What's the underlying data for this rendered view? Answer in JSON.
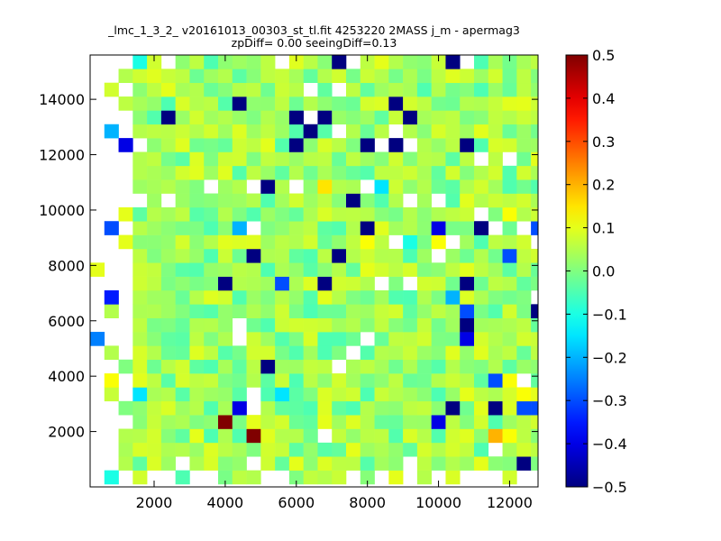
{
  "chart_data": {
    "type": "heatmap",
    "title": "_lmc_1_3_2_ v20161013_00303_st_tl.fit 4253220 2MASS j_m - apermag3",
    "subtitle": "zpDiff= 0.00 seeingDiff=0.13",
    "xlabel": "",
    "ylabel": "",
    "xlim": [
      200,
      12800
    ],
    "ylim": [
      0,
      15600
    ],
    "x_ticks": [
      2000,
      4000,
      6000,
      8000,
      10000,
      12000
    ],
    "y_ticks": [
      2000,
      4000,
      6000,
      8000,
      10000,
      12000,
      14000
    ],
    "x_tick_labels": [
      "2000",
      "4000",
      "6000",
      "8000",
      "10000",
      "12000"
    ],
    "y_tick_labels": [
      "2000",
      "4000",
      "6000",
      "8000",
      "10000",
      "12000",
      "14000"
    ],
    "colormap": "jet",
    "clim": [
      -0.5,
      0.5
    ],
    "colorbar_ticks": [
      0.5,
      0.4,
      0.3,
      0.2,
      0.1,
      0.0,
      -0.1,
      -0.2,
      -0.3,
      -0.4,
      -0.5
    ],
    "colorbar_tick_labels": [
      "0.5",
      "0.4",
      "0.3",
      "0.2",
      "0.1",
      "0.0",
      "−0.1",
      "−0.2",
      "−0.3",
      "−0.4",
      "−0.5"
    ],
    "grid": false,
    "bin_size": [
      400,
      500
    ],
    "x_bin_start": 200,
    "y_bin_start": 100,
    "rows_bottom_to_top": [
      "......,..,,,..,,,,.,,,.,.,........",
      "..,,,,.,,,..,,,,,,,,,,,,,,,,,,C,..",
      "..,,,,,,,,,,,,,,,,,,,,,,,,,,,,,,..",
      "...,,,,,,,,X,,,,,,,,,,,,,,,,,,,,..",
      "...,,,,,,,,,,,,,,,,,,,,,,,,,,,,,,.",
      "...,,,,,,,,,,,,,,,,,,,,,,,,,,,,,,.",
      "...,,,,,,,,,,,,,,,,,,,,,,,,,,,,,,.",
      "...,,,,,,,,,,,,,,,,,,,,,,,,,,,,,,.",
      "...,,,,,,,,,,,,,,,,,,,,,,,,,,,,,,.",
      "...,,,,,,,,,,,,,,,,,,,,,,,,,,,,,,.",
      "...,,,,,,,,,,,,,,,,,,,,,,,,,,,,,,.",
      "...,,,,,,,,,,,,,,,,,,,,,,,,,,,,,,.",
      "...,,,,,,,,,,,,,,,,,,,,,,,,,,,,,,.",
      "...,,,,,,,,,,,,,,,,,,,,,,,,,,,,,,.",
      "...,,,,,,,,,,,,,,,,,,,,,,,,,,,,,,.",
      "...,,,,,,,,,,,,,,,,,,,,,,,,,,,,,,.",
      "...,,,,,,,,,,,,,,,,,,,,,,,,,,,,,,.",
      "...,,,,,,,,,,,,,,,,,,,,,,,,,,,,,,.",
      "...,,,,,,,,,,,,,,,,,,,,,,,,,,,,,,.",
      "...,,,,,,,,,,,,,,,,,,,,,,,,,,,,,,.",
      "...,,,,,,,,,,,,,,,,,,,,,,,,,,,,,,.",
      "...,,,,,,,,,,,,,,,,,,,,,,,,,,,,,,.",
      "...,,,,,,,,,,,,,,,,,,,,,,,,,,,,,,.",
      "...,,,,,,,,,,,,,,,,,,,,,,,,,,,,,,.",
      "...,,,,,,,,,,,,,,,,,,,,,,,,,,,,,,.",
      "...,,,,,,,,,,,,,,,,,,,,,,,,,,,,,,.",
      "...,,,,,,,,,,,,,,,,,,,,,,,,,,,,,,.",
      "...,,,,,,,,,,,,,,,,,,,,,,,,,,,,,,.",
      "...,,,,,,,,,,,,,,,,,,,,,,,,,,,,,,.",
      "...,,,,,,,,,,,,,,,,,,,,,,,,,,,,,,.",
      "...,,,,,,,,,,,,,,,,,,,,,,,,,,,,,,."
    ],
    "cells": [
      [
        1,
        0,
        -0.1
      ],
      [
        3,
        0,
        0.08
      ],
      [
        11,
        0,
        0.05
      ],
      [
        21,
        0,
        0.1
      ],
      [
        29,
        0,
        0.08
      ],
      [
        2,
        1,
        0.05
      ],
      [
        5,
        1,
        0.03
      ],
      [
        10,
        1,
        0.02
      ],
      [
        14,
        1,
        0.1
      ],
      [
        17,
        1,
        0.06
      ],
      [
        23,
        1,
        0.06
      ],
      [
        27,
        1,
        0.1
      ],
      [
        30,
        1,
        -0.5
      ],
      [
        32,
        1,
        0.05
      ],
      [
        6,
        2,
        0.05
      ],
      [
        12,
        2,
        0.08
      ],
      [
        15,
        2,
        0.02
      ],
      [
        19,
        2,
        0.03
      ],
      [
        24,
        2,
        0.05
      ],
      [
        30,
        2,
        0.08
      ],
      [
        2,
        3,
        0.05
      ],
      [
        7,
        3,
        0.1
      ],
      [
        13,
        3,
        0.05
      ],
      [
        18,
        3,
        0.02
      ],
      [
        20,
        3,
        0.06
      ],
      [
        28,
        3,
        0.2
      ],
      [
        29,
        3,
        0.12
      ],
      [
        32,
        3,
        0.2
      ],
      [
        4,
        4,
        0.07
      ],
      [
        9,
        4,
        0.5
      ],
      [
        12,
        4,
        0.06
      ],
      [
        16,
        4,
        0.1
      ],
      [
        19,
        4,
        0.05
      ],
      [
        24,
        4,
        -0.4
      ],
      [
        25,
        4,
        0.06
      ],
      [
        27,
        4,
        0.08
      ],
      [
        31,
        4,
        0.08
      ],
      [
        2,
        5,
        0.0
      ],
      [
        6,
        5,
        0.03
      ],
      [
        10,
        5,
        -0.4
      ],
      [
        12,
        5,
        0.05
      ],
      [
        18,
        5,
        -0.05
      ],
      [
        22,
        5,
        0.06
      ],
      [
        25,
        5,
        -0.5
      ],
      [
        28,
        5,
        -0.5
      ],
      [
        30,
        5,
        -0.3
      ],
      [
        31,
        5,
        -0.3
      ],
      [
        1,
        6,
        0.07
      ],
      [
        3,
        6,
        -0.15
      ],
      [
        5,
        6,
        0.05
      ],
      [
        8,
        6,
        0.03
      ],
      [
        13,
        6,
        -0.15
      ],
      [
        15,
        6,
        0.0
      ],
      [
        19,
        6,
        -0.05
      ],
      [
        21,
        6,
        0.05
      ],
      [
        24,
        6,
        -0.05
      ],
      [
        26,
        6,
        0.1
      ],
      [
        30,
        6,
        0.12
      ],
      [
        1,
        7,
        0.12
      ],
      [
        4,
        7,
        0.06
      ],
      [
        9,
        7,
        0.0
      ],
      [
        11,
        7,
        0.05
      ],
      [
        14,
        7,
        -0.05
      ],
      [
        17,
        7,
        0.08
      ],
      [
        21,
        7,
        0.06
      ],
      [
        24,
        7,
        0.05
      ],
      [
        28,
        7,
        -0.3
      ],
      [
        29,
        7,
        0.12
      ],
      [
        2,
        8,
        0.0
      ],
      [
        6,
        8,
        0.08
      ],
      [
        12,
        8,
        -0.5
      ],
      [
        14,
        8,
        0.03
      ],
      [
        19,
        8,
        0.06
      ],
      [
        25,
        8,
        0.05
      ],
      [
        27,
        8,
        0.0
      ],
      [
        1,
        9,
        0.05
      ],
      [
        4,
        9,
        0.05
      ],
      [
        8,
        9,
        0.06
      ],
      [
        11,
        9,
        0.08
      ],
      [
        16,
        9,
        -0.05
      ],
      [
        20,
        9,
        0.05
      ],
      [
        26,
        9,
        0.02
      ],
      [
        29,
        9,
        0.06
      ],
      [
        0,
        10,
        -0.25
      ],
      [
        3,
        10,
        0.05
      ],
      [
        7,
        10,
        0.06
      ],
      [
        12,
        10,
        0.03
      ],
      [
        16,
        10,
        -0.05
      ],
      [
        22,
        10,
        0.06
      ],
      [
        26,
        10,
        -0.4
      ],
      [
        29,
        10,
        0.03
      ],
      [
        3,
        11,
        0.06
      ],
      [
        8,
        11,
        0.05
      ],
      [
        14,
        11,
        0.08
      ],
      [
        18,
        11,
        0.05
      ],
      [
        26,
        11,
        -0.5
      ],
      [
        30,
        11,
        0.06
      ],
      [
        1,
        12,
        0.05
      ],
      [
        5,
        12,
        0.03
      ],
      [
        9,
        12,
        0.02
      ],
      [
        15,
        12,
        -0.05
      ],
      [
        19,
        12,
        0.03
      ],
      [
        23,
        12,
        0.02
      ],
      [
        26,
        12,
        -0.3
      ],
      [
        29,
        12,
        0.08
      ],
      [
        31,
        12,
        -0.5
      ],
      [
        1,
        13,
        -0.35
      ],
      [
        3,
        13,
        0.05
      ],
      [
        9,
        13,
        0.08
      ],
      [
        12,
        13,
        0.0
      ],
      [
        14,
        13,
        0.02
      ],
      [
        18,
        13,
        0.0
      ],
      [
        22,
        13,
        -0.05
      ],
      [
        25,
        13,
        -0.2
      ],
      [
        28,
        13,
        0.0
      ],
      [
        30,
        13,
        0.0
      ],
      [
        4,
        14,
        0.06
      ],
      [
        9,
        14,
        -0.5
      ],
      [
        10,
        14,
        0.05
      ],
      [
        13,
        14,
        -0.3
      ],
      [
        16,
        14,
        -0.5
      ],
      [
        17,
        14,
        0.08
      ],
      [
        21,
        14,
        0.0
      ],
      [
        23,
        14,
        0.08
      ],
      [
        26,
        14,
        -0.5
      ],
      [
        28,
        14,
        0.06
      ],
      [
        29,
        14,
        0.05
      ],
      [
        0,
        15,
        0.1
      ],
      [
        5,
        15,
        0.0
      ],
      [
        11,
        15,
        0.05
      ],
      [
        14,
        15,
        0.02
      ],
      [
        20,
        15,
        0.08
      ],
      [
        25,
        15,
        0.06
      ],
      [
        27,
        15,
        0.06
      ],
      [
        30,
        15,
        0.05
      ],
      [
        32,
        15,
        0.06
      ],
      [
        3,
        16,
        0.06
      ],
      [
        6,
        16,
        0.05
      ],
      [
        11,
        16,
        -0.5
      ],
      [
        13,
        16,
        0.05
      ],
      [
        17,
        16,
        -0.5
      ],
      [
        20,
        16,
        0.05
      ],
      [
        23,
        16,
        0.03
      ],
      [
        29,
        16,
        -0.3
      ],
      [
        2,
        17,
        0.1
      ],
      [
        5,
        17,
        0.02
      ],
      [
        8,
        17,
        0.05
      ],
      [
        12,
        17,
        0.03
      ],
      [
        15,
        17,
        0.08
      ],
      [
        19,
        17,
        0.12
      ],
      [
        20,
        17,
        0.06
      ],
      [
        22,
        17,
        -0.1
      ],
      [
        24,
        17,
        0.12
      ],
      [
        28,
        17,
        0.06
      ],
      [
        1,
        18,
        -0.3
      ],
      [
        4,
        18,
        0.03
      ],
      [
        10,
        18,
        -0.2
      ],
      [
        12,
        18,
        0.0
      ],
      [
        15,
        18,
        0.06
      ],
      [
        19,
        18,
        -0.5
      ],
      [
        22,
        18,
        0.05
      ],
      [
        24,
        18,
        -0.4
      ],
      [
        27,
        18,
        -0.5
      ],
      [
        31,
        18,
        -0.3
      ],
      [
        33,
        18,
        0.1
      ],
      [
        2,
        19,
        0.1
      ],
      [
        6,
        19,
        0.06
      ],
      [
        9,
        19,
        0.05
      ],
      [
        13,
        19,
        0.0
      ],
      [
        18,
        19,
        0.06
      ],
      [
        22,
        19,
        0.05
      ],
      [
        25,
        19,
        0.06
      ],
      [
        29,
        19,
        0.12
      ],
      [
        4,
        20,
        0.03
      ],
      [
        7,
        20,
        0.0
      ],
      [
        11,
        20,
        0.05
      ],
      [
        15,
        20,
        0.03
      ],
      [
        18,
        20,
        -0.5
      ],
      [
        21,
        20,
        0.05
      ],
      [
        27,
        20,
        0.05
      ],
      [
        30,
        20,
        0.08
      ],
      [
        5,
        21,
        0.05
      ],
      [
        9,
        21,
        0.03
      ],
      [
        12,
        21,
        -0.5
      ],
      [
        13,
        21,
        0.05
      ],
      [
        16,
        21,
        0.15
      ],
      [
        17,
        21,
        0.05
      ],
      [
        20,
        21,
        -0.15
      ],
      [
        23,
        21,
        0.05
      ],
      [
        27,
        21,
        0.08
      ],
      [
        3,
        22,
        0.05
      ],
      [
        6,
        22,
        0.08
      ],
      [
        8,
        22,
        0.03
      ],
      [
        11,
        22,
        0.06
      ],
      [
        14,
        22,
        0.05
      ],
      [
        20,
        22,
        0.06
      ],
      [
        25,
        22,
        0.08
      ],
      [
        28,
        22,
        0.08
      ],
      [
        3,
        23,
        0.05
      ],
      [
        8,
        23,
        0.0
      ],
      [
        13,
        23,
        0.05
      ],
      [
        16,
        23,
        0.06
      ],
      [
        19,
        23,
        0.03
      ],
      [
        24,
        23,
        0.05
      ],
      [
        26,
        23,
        0.06
      ],
      [
        32,
        23,
        -0.2
      ],
      [
        2,
        24,
        -0.4
      ],
      [
        5,
        24,
        0.05
      ],
      [
        11,
        24,
        0.06
      ],
      [
        14,
        24,
        -0.5
      ],
      [
        19,
        24,
        -0.5
      ],
      [
        21,
        24,
        -0.5
      ],
      [
        23,
        24,
        0.05
      ],
      [
        26,
        24,
        -0.5
      ],
      [
        29,
        24,
        0.08
      ],
      [
        33,
        24,
        0.05
      ],
      [
        1,
        25,
        -0.2
      ],
      [
        4,
        25,
        0.06
      ],
      [
        7,
        25,
        0.05
      ],
      [
        11,
        25,
        0.03
      ],
      [
        15,
        25,
        -0.5
      ],
      [
        18,
        25,
        0.05
      ],
      [
        22,
        25,
        0.05
      ],
      [
        25,
        25,
        0.06
      ],
      [
        28,
        25,
        0.06
      ],
      [
        5,
        26,
        -0.5
      ],
      [
        9,
        26,
        0.05
      ],
      [
        11,
        26,
        0.0
      ],
      [
        14,
        26,
        -0.5
      ],
      [
        16,
        26,
        -0.5
      ],
      [
        22,
        26,
        -0.5
      ],
      [
        25,
        26,
        0.06
      ],
      [
        29,
        26,
        0.05
      ],
      [
        31,
        26,
        0.06
      ],
      [
        2,
        27,
        0.06
      ],
      [
        7,
        27,
        0.05
      ],
      [
        10,
        27,
        -0.5
      ],
      [
        13,
        27,
        0.06
      ],
      [
        15,
        27,
        0.05
      ],
      [
        21,
        27,
        -0.5
      ],
      [
        23,
        27,
        0.06
      ],
      [
        26,
        27,
        0.05
      ],
      [
        30,
        27,
        0.1
      ],
      [
        1,
        28,
        0.08
      ],
      [
        4,
        28,
        0.06
      ],
      [
        7,
        28,
        0.05
      ],
      [
        11,
        28,
        0.06
      ],
      [
        18,
        28,
        0.06
      ],
      [
        21,
        28,
        0.05
      ],
      [
        24,
        28,
        0.05
      ],
      [
        27,
        28,
        -0.05
      ],
      [
        30,
        28,
        0.06
      ],
      [
        2,
        29,
        0.05
      ],
      [
        6,
        29,
        0.06
      ],
      [
        9,
        29,
        0.05
      ],
      [
        12,
        29,
        0.06
      ],
      [
        16,
        29,
        0.05
      ],
      [
        20,
        29,
        0.05
      ],
      [
        24,
        29,
        0.06
      ],
      [
        27,
        29,
        0.03
      ],
      [
        30,
        29,
        0.06
      ],
      [
        3,
        30,
        -0.1
      ],
      [
        7,
        30,
        0.06
      ],
      [
        10,
        30,
        0.03
      ],
      [
        12,
        30,
        0.06
      ],
      [
        17,
        30,
        -0.5
      ],
      [
        21,
        30,
        0.05
      ],
      [
        25,
        30,
        -0.5
      ],
      [
        27,
        30,
        -0.05
      ],
      [
        31,
        30,
        0.06
      ]
    ]
  }
}
